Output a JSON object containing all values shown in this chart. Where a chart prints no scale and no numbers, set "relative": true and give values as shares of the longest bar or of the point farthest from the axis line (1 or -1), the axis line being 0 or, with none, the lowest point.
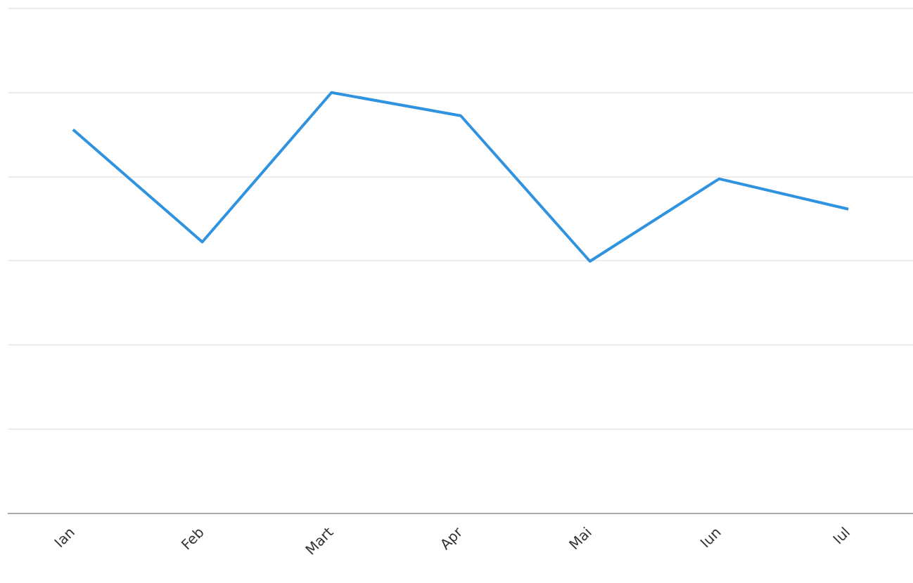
{
  "chart_data": {
    "type": "line",
    "relative": true,
    "grid": "y",
    "marker": "none",
    "line_style": "solid",
    "categories": [
      "Ian",
      "Feb",
      "Mart",
      "Apr",
      "Mai",
      "Iun",
      "Iul"
    ],
    "series": [
      {
        "color": "#2f93e0",
        "values": [
          0.912,
          0.645,
          1,
          0.945,
          0.599,
          0.795,
          0.723
        ]
      }
    ]
  }
}
